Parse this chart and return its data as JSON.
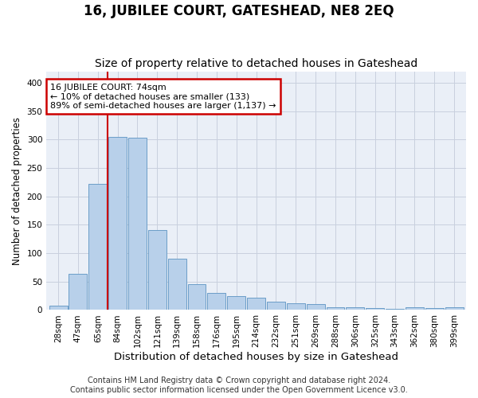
{
  "title": "16, JUBILEE COURT, GATESHEAD, NE8 2EQ",
  "subtitle": "Size of property relative to detached houses in Gateshead",
  "xlabel": "Distribution of detached houses by size in Gateshead",
  "ylabel": "Number of detached properties",
  "footer_line1": "Contains HM Land Registry data © Crown copyright and database right 2024.",
  "footer_line2": "Contains public sector information licensed under the Open Government Licence v3.0.",
  "bin_labels": [
    "28sqm",
    "47sqm",
    "65sqm",
    "84sqm",
    "102sqm",
    "121sqm",
    "139sqm",
    "158sqm",
    "176sqm",
    "195sqm",
    "214sqm",
    "232sqm",
    "251sqm",
    "269sqm",
    "288sqm",
    "306sqm",
    "325sqm",
    "343sqm",
    "362sqm",
    "380sqm",
    "399sqm"
  ],
  "bar_values": [
    8,
    63,
    222,
    305,
    303,
    141,
    90,
    46,
    30,
    25,
    21,
    15,
    12,
    10,
    5,
    5,
    3,
    2,
    5,
    3,
    5
  ],
  "bar_color": "#b8d0ea",
  "bar_edge_color": "#6b9dc8",
  "vline_color": "#cc0000",
  "annotation_line1": "16 JUBILEE COURT: 74sqm",
  "annotation_line2": "← 10% of detached houses are smaller (133)",
  "annotation_line3": "89% of semi-detached houses are larger (1,137) →",
  "annotation_box_color": "#cc0000",
  "annotation_bg": "white",
  "ylim": [
    0,
    420
  ],
  "yticks": [
    0,
    50,
    100,
    150,
    200,
    250,
    300,
    350,
    400
  ],
  "grid_color": "#c8d0de",
  "bg_color": "#eaeff7",
  "title_fontsize": 12,
  "subtitle_fontsize": 10,
  "ylabel_fontsize": 8.5,
  "xlabel_fontsize": 9.5,
  "tick_fontsize": 7.5,
  "annotation_fontsize": 8,
  "footer_fontsize": 7,
  "vline_xindex": 2.5
}
